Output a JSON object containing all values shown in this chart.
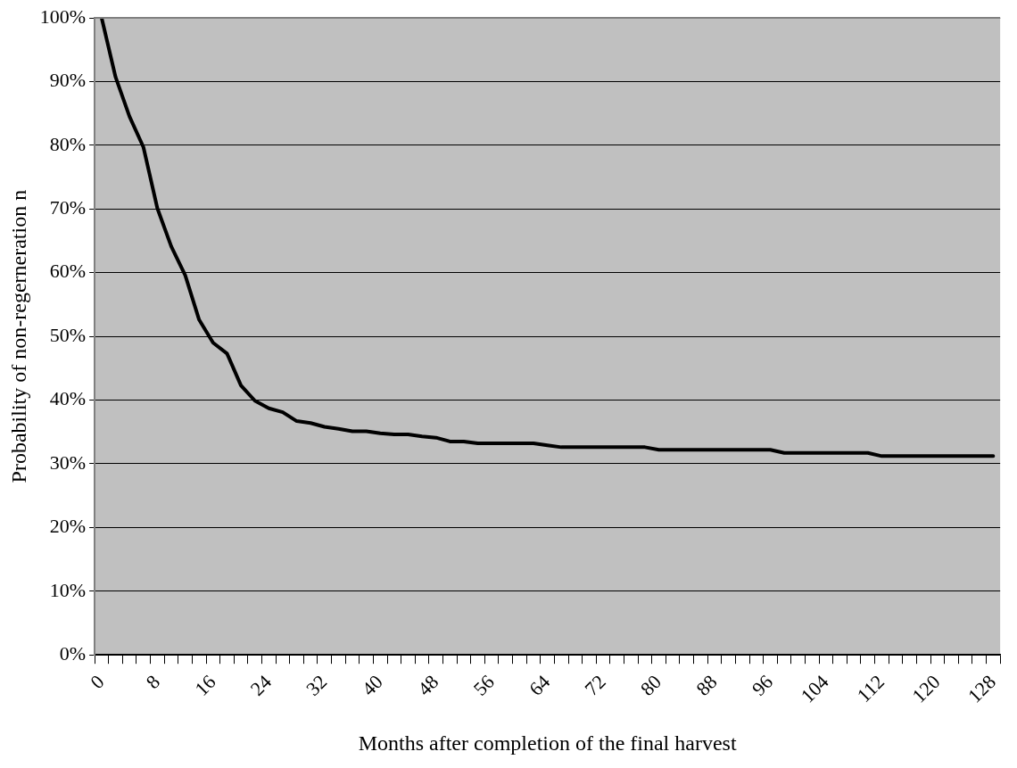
{
  "chart_data": {
    "type": "line",
    "xlabel": "Months after completion of the final harvest",
    "ylabel": "Probability of non-regerneration n",
    "categories": [
      "0",
      null,
      null,
      null,
      "8",
      null,
      null,
      null,
      "16",
      null,
      null,
      null,
      "24",
      null,
      null,
      null,
      "32",
      null,
      null,
      null,
      "40",
      null,
      null,
      null,
      "48",
      null,
      null,
      null,
      "56",
      null,
      null,
      null,
      "64",
      null,
      null,
      null,
      "72",
      null,
      null,
      null,
      "80",
      null,
      null,
      null,
      "88",
      null,
      null,
      null,
      "96",
      null,
      null,
      null,
      "104",
      null,
      null,
      null,
      "112",
      null,
      null,
      null,
      "120",
      null,
      null,
      null,
      "128"
    ],
    "series": [
      {
        "color": "#000000",
        "values": [
          100,
          90.7,
          84.5,
          79.7,
          70.1,
          64.1,
          59.6,
          52.6,
          49.0,
          47.3,
          42.3,
          39.9,
          38.7,
          38.1,
          36.7,
          36.4,
          35.8,
          35.5,
          35.1,
          35.1,
          34.8,
          34.6,
          34.6,
          34.3,
          34.1,
          33.5,
          33.5,
          33.2,
          33.2,
          33.2,
          33.2,
          33.2,
          32.9,
          32.6,
          32.6,
          32.6,
          32.6,
          32.6,
          32.6,
          32.6,
          32.2,
          32.2,
          32.2,
          32.2,
          32.2,
          32.2,
          32.2,
          32.2,
          32.2,
          31.7,
          31.7,
          31.7,
          31.7,
          31.7,
          31.7,
          31.7,
          31.2,
          31.2,
          31.2,
          31.2,
          31.2,
          31.2,
          31.2,
          31.2,
          31.2
        ]
      }
    ],
    "ylim": [
      0,
      100
    ],
    "yticks": [
      {
        "value": 0,
        "label": "0%"
      },
      {
        "value": 10,
        "label": "10%"
      },
      {
        "value": 20,
        "label": "20%"
      },
      {
        "value": 30,
        "label": "30%"
      },
      {
        "value": 40,
        "label": "40%"
      },
      {
        "value": 50,
        "label": "50%"
      },
      {
        "value": 60,
        "label": "60%"
      },
      {
        "value": 70,
        "label": "70%"
      },
      {
        "value": 80,
        "label": "80%"
      },
      {
        "value": 90,
        "label": "90%"
      },
      {
        "value": 100,
        "label": "100%"
      }
    ],
    "grid": "y",
    "legend": false,
    "marker": "none",
    "line_style": "solid"
  }
}
